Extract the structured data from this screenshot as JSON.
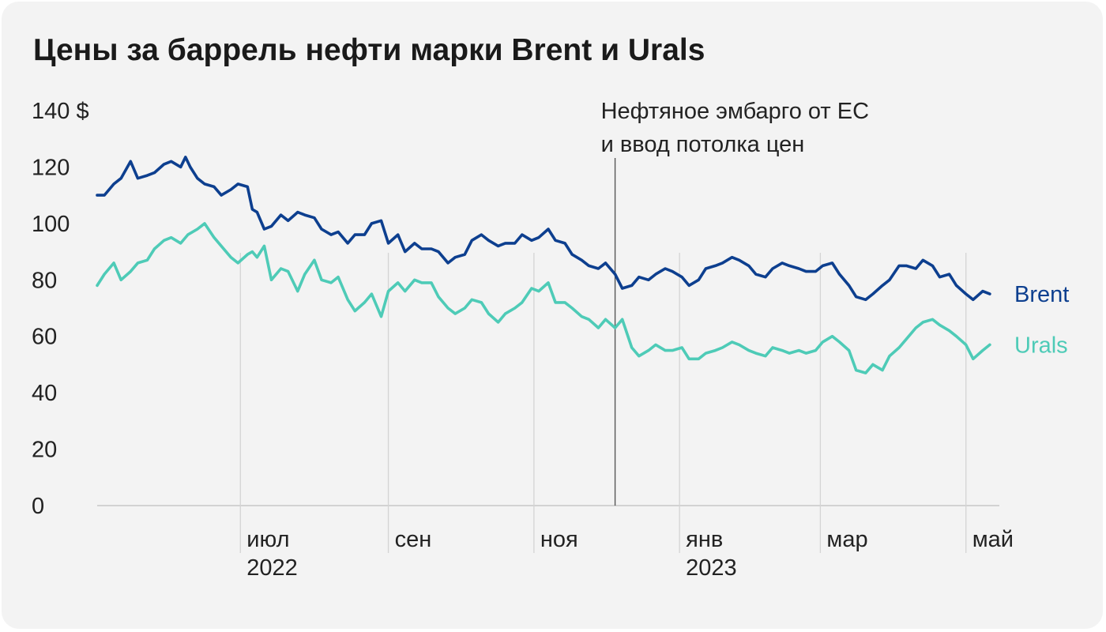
{
  "chart_data": {
    "type": "line",
    "title": "Цены за баррель нефти марки Brent и Urals",
    "ylim": [
      0,
      140
    ],
    "yticks": [
      {
        "value": 0,
        "label": "0"
      },
      {
        "value": 20,
        "label": "20"
      },
      {
        "value": 40,
        "label": "40"
      },
      {
        "value": 60,
        "label": "60"
      },
      {
        "value": 80,
        "label": "80"
      },
      {
        "value": 100,
        "label": "100"
      },
      {
        "value": 120,
        "label": "120"
      },
      {
        "value": 140,
        "label": "140 $"
      }
    ],
    "xlim": [
      "2022-05-02",
      "2023-05-15"
    ],
    "xticks": [
      {
        "date": "2022-07-01",
        "label": "июл",
        "year": "2022"
      },
      {
        "date": "2022-09-01",
        "label": "сен",
        "year": ""
      },
      {
        "date": "2022-11-01",
        "label": "ноя",
        "year": ""
      },
      {
        "date": "2023-01-01",
        "label": "янв",
        "year": "2023"
      },
      {
        "date": "2023-03-01",
        "label": "мар",
        "year": ""
      },
      {
        "date": "2023-05-01",
        "label": "май",
        "year": ""
      }
    ],
    "grid": "vertical",
    "annotation": {
      "date": "2022-12-05",
      "lines": [
        "Нефтяное эмбарго от ЕС",
        "и ввод потолка цен"
      ]
    },
    "series": [
      {
        "name": "Brent",
        "color": "#0d3f8f",
        "points": [
          [
            "2022-05-02",
            110
          ],
          [
            "2022-05-05",
            110
          ],
          [
            "2022-05-09",
            114
          ],
          [
            "2022-05-12",
            116
          ],
          [
            "2022-05-16",
            122
          ],
          [
            "2022-05-19",
            116
          ],
          [
            "2022-05-23",
            117
          ],
          [
            "2022-05-26",
            118
          ],
          [
            "2022-05-30",
            121
          ],
          [
            "2022-06-02",
            122
          ],
          [
            "2022-06-06",
            120
          ],
          [
            "2022-06-08",
            123.5
          ],
          [
            "2022-06-10",
            120
          ],
          [
            "2022-06-13",
            116
          ],
          [
            "2022-06-16",
            114
          ],
          [
            "2022-06-20",
            113
          ],
          [
            "2022-06-23",
            110
          ],
          [
            "2022-06-27",
            112
          ],
          [
            "2022-06-30",
            114
          ],
          [
            "2022-07-04",
            113
          ],
          [
            "2022-07-06",
            105
          ],
          [
            "2022-07-08",
            104
          ],
          [
            "2022-07-11",
            98
          ],
          [
            "2022-07-14",
            99
          ],
          [
            "2022-07-18",
            103
          ],
          [
            "2022-07-21",
            101
          ],
          [
            "2022-07-25",
            104
          ],
          [
            "2022-07-28",
            103
          ],
          [
            "2022-08-01",
            102
          ],
          [
            "2022-08-04",
            98
          ],
          [
            "2022-08-08",
            96
          ],
          [
            "2022-08-11",
            97
          ],
          [
            "2022-08-15",
            93
          ],
          [
            "2022-08-18",
            96
          ],
          [
            "2022-08-22",
            96
          ],
          [
            "2022-08-25",
            100
          ],
          [
            "2022-08-29",
            101
          ],
          [
            "2022-09-01",
            93
          ],
          [
            "2022-09-05",
            96
          ],
          [
            "2022-09-08",
            90
          ],
          [
            "2022-09-12",
            93
          ],
          [
            "2022-09-15",
            91
          ],
          [
            "2022-09-19",
            91
          ],
          [
            "2022-09-22",
            90
          ],
          [
            "2022-09-26",
            86
          ],
          [
            "2022-09-29",
            88
          ],
          [
            "2022-10-03",
            89
          ],
          [
            "2022-10-06",
            94
          ],
          [
            "2022-10-10",
            96
          ],
          [
            "2022-10-13",
            94
          ],
          [
            "2022-10-17",
            92
          ],
          [
            "2022-10-20",
            93
          ],
          [
            "2022-10-24",
            93
          ],
          [
            "2022-10-27",
            96
          ],
          [
            "2022-10-31",
            94
          ],
          [
            "2022-11-03",
            95
          ],
          [
            "2022-11-07",
            98
          ],
          [
            "2022-11-10",
            94
          ],
          [
            "2022-11-14",
            93
          ],
          [
            "2022-11-17",
            89
          ],
          [
            "2022-11-21",
            87
          ],
          [
            "2022-11-24",
            85
          ],
          [
            "2022-11-28",
            84
          ],
          [
            "2022-12-01",
            86
          ],
          [
            "2022-12-05",
            82
          ],
          [
            "2022-12-08",
            77
          ],
          [
            "2022-12-12",
            78
          ],
          [
            "2022-12-15",
            81
          ],
          [
            "2022-12-19",
            80
          ],
          [
            "2022-12-22",
            82
          ],
          [
            "2022-12-26",
            84
          ],
          [
            "2022-12-29",
            83
          ],
          [
            "2023-01-02",
            81
          ],
          [
            "2023-01-05",
            78
          ],
          [
            "2023-01-09",
            80
          ],
          [
            "2023-01-12",
            84
          ],
          [
            "2023-01-16",
            85
          ],
          [
            "2023-01-19",
            86
          ],
          [
            "2023-01-23",
            88
          ],
          [
            "2023-01-26",
            87
          ],
          [
            "2023-01-30",
            85
          ],
          [
            "2023-02-02",
            82
          ],
          [
            "2023-02-06",
            81
          ],
          [
            "2023-02-09",
            84
          ],
          [
            "2023-02-13",
            86
          ],
          [
            "2023-02-16",
            85
          ],
          [
            "2023-02-20",
            84
          ],
          [
            "2023-02-23",
            83
          ],
          [
            "2023-02-27",
            83
          ],
          [
            "2023-03-02",
            85
          ],
          [
            "2023-03-06",
            86
          ],
          [
            "2023-03-09",
            82
          ],
          [
            "2023-03-13",
            78
          ],
          [
            "2023-03-16",
            74
          ],
          [
            "2023-03-20",
            73
          ],
          [
            "2023-03-23",
            75
          ],
          [
            "2023-03-27",
            78
          ],
          [
            "2023-03-30",
            80
          ],
          [
            "2023-04-03",
            85
          ],
          [
            "2023-04-06",
            85
          ],
          [
            "2023-04-10",
            84
          ],
          [
            "2023-04-13",
            87
          ],
          [
            "2023-04-17",
            85
          ],
          [
            "2023-04-20",
            81
          ],
          [
            "2023-04-24",
            82
          ],
          [
            "2023-04-27",
            78
          ],
          [
            "2023-05-01",
            75
          ],
          [
            "2023-05-04",
            73
          ],
          [
            "2023-05-08",
            76
          ],
          [
            "2023-05-11",
            75
          ]
        ]
      },
      {
        "name": "Urals",
        "color": "#4ecbb7",
        "points": [
          [
            "2022-05-02",
            78
          ],
          [
            "2022-05-05",
            82
          ],
          [
            "2022-05-09",
            86
          ],
          [
            "2022-05-12",
            80
          ],
          [
            "2022-05-16",
            83
          ],
          [
            "2022-05-19",
            86
          ],
          [
            "2022-05-23",
            87
          ],
          [
            "2022-05-26",
            91
          ],
          [
            "2022-05-30",
            94
          ],
          [
            "2022-06-02",
            95
          ],
          [
            "2022-06-06",
            93
          ],
          [
            "2022-06-09",
            96
          ],
          [
            "2022-06-13",
            98
          ],
          [
            "2022-06-16",
            100
          ],
          [
            "2022-06-20",
            95
          ],
          [
            "2022-06-23",
            92
          ],
          [
            "2022-06-27",
            88
          ],
          [
            "2022-06-30",
            86
          ],
          [
            "2022-07-04",
            89
          ],
          [
            "2022-07-06",
            90
          ],
          [
            "2022-07-08",
            88
          ],
          [
            "2022-07-11",
            92
          ],
          [
            "2022-07-14",
            80
          ],
          [
            "2022-07-18",
            84
          ],
          [
            "2022-07-21",
            83
          ],
          [
            "2022-07-25",
            76
          ],
          [
            "2022-07-28",
            82
          ],
          [
            "2022-08-01",
            87
          ],
          [
            "2022-08-04",
            80
          ],
          [
            "2022-08-08",
            79
          ],
          [
            "2022-08-11",
            81
          ],
          [
            "2022-08-15",
            73
          ],
          [
            "2022-08-18",
            69
          ],
          [
            "2022-08-22",
            72
          ],
          [
            "2022-08-25",
            75
          ],
          [
            "2022-08-29",
            67
          ],
          [
            "2022-09-01",
            76
          ],
          [
            "2022-09-05",
            79
          ],
          [
            "2022-09-08",
            76
          ],
          [
            "2022-09-12",
            80
          ],
          [
            "2022-09-15",
            79
          ],
          [
            "2022-09-19",
            79
          ],
          [
            "2022-09-22",
            74
          ],
          [
            "2022-09-26",
            70
          ],
          [
            "2022-09-29",
            68
          ],
          [
            "2022-10-03",
            70
          ],
          [
            "2022-10-06",
            73
          ],
          [
            "2022-10-10",
            72
          ],
          [
            "2022-10-13",
            68
          ],
          [
            "2022-10-17",
            65
          ],
          [
            "2022-10-20",
            68
          ],
          [
            "2022-10-24",
            70
          ],
          [
            "2022-10-27",
            72
          ],
          [
            "2022-10-31",
            77
          ],
          [
            "2022-11-03",
            76
          ],
          [
            "2022-11-07",
            79
          ],
          [
            "2022-11-10",
            72
          ],
          [
            "2022-11-14",
            72
          ],
          [
            "2022-11-17",
            70
          ],
          [
            "2022-11-21",
            67
          ],
          [
            "2022-11-24",
            66
          ],
          [
            "2022-11-28",
            63
          ],
          [
            "2022-12-01",
            66
          ],
          [
            "2022-12-05",
            63
          ],
          [
            "2022-12-08",
            66
          ],
          [
            "2022-12-12",
            56
          ],
          [
            "2022-12-15",
            53
          ],
          [
            "2022-12-19",
            55
          ],
          [
            "2022-12-22",
            57
          ],
          [
            "2022-12-26",
            55
          ],
          [
            "2022-12-29",
            55
          ],
          [
            "2023-01-02",
            56
          ],
          [
            "2023-01-05",
            52
          ],
          [
            "2023-01-09",
            52
          ],
          [
            "2023-01-12",
            54
          ],
          [
            "2023-01-16",
            55
          ],
          [
            "2023-01-19",
            56
          ],
          [
            "2023-01-23",
            58
          ],
          [
            "2023-01-26",
            57
          ],
          [
            "2023-01-30",
            55
          ],
          [
            "2023-02-02",
            54
          ],
          [
            "2023-02-06",
            53
          ],
          [
            "2023-02-09",
            56
          ],
          [
            "2023-02-13",
            55
          ],
          [
            "2023-02-16",
            54
          ],
          [
            "2023-02-20",
            55
          ],
          [
            "2023-02-23",
            54
          ],
          [
            "2023-02-27",
            55
          ],
          [
            "2023-03-02",
            58
          ],
          [
            "2023-03-06",
            60
          ],
          [
            "2023-03-09",
            58
          ],
          [
            "2023-03-13",
            55
          ],
          [
            "2023-03-16",
            48
          ],
          [
            "2023-03-20",
            47
          ],
          [
            "2023-03-23",
            50
          ],
          [
            "2023-03-27",
            48
          ],
          [
            "2023-03-30",
            53
          ],
          [
            "2023-04-03",
            56
          ],
          [
            "2023-04-06",
            59
          ],
          [
            "2023-04-10",
            63
          ],
          [
            "2023-04-13",
            65
          ],
          [
            "2023-04-17",
            66
          ],
          [
            "2023-04-20",
            64
          ],
          [
            "2023-04-24",
            62
          ],
          [
            "2023-04-27",
            60
          ],
          [
            "2023-05-01",
            57
          ],
          [
            "2023-05-04",
            52
          ],
          [
            "2023-05-08",
            55
          ],
          [
            "2023-05-11",
            57
          ]
        ]
      }
    ]
  }
}
